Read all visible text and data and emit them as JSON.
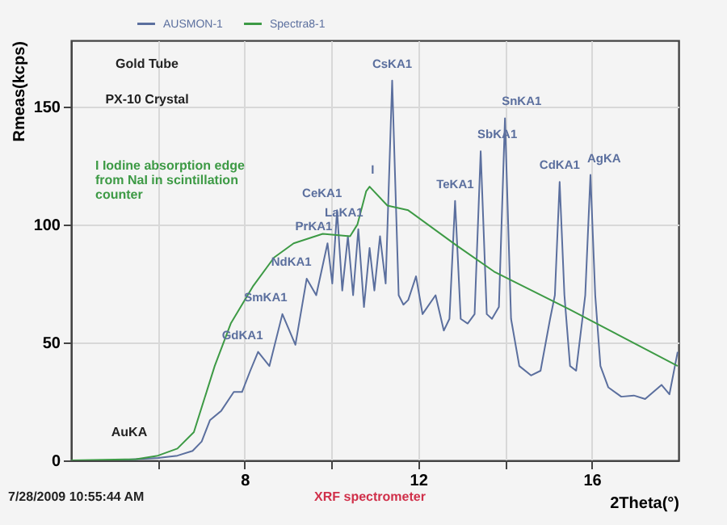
{
  "chart_data": {
    "type": "line",
    "xlabel": "2Theta(°)",
    "ylabel": "Rmeas(kcps)",
    "xlim": [
      4,
      18
    ],
    "ylim": [
      0,
      178
    ],
    "xticks": [
      {
        "value": 6,
        "label": null
      },
      8,
      {
        "value": 10,
        "label": null
      },
      12,
      {
        "value": 14,
        "label": null
      },
      16
    ],
    "yticks": [
      0,
      50,
      100,
      150
    ],
    "grid": true,
    "legend": "top left",
    "series": [
      {
        "name": "AUSMON-1",
        "color": "#5b6f9e",
        "x": [
          4,
          5,
          5.5,
          6,
          6.45,
          6.8,
          7.01,
          7.2,
          7.46,
          7.75,
          7.94,
          8.13,
          8.31,
          8.57,
          8.87,
          9.17,
          9.43,
          9.65,
          9.91,
          10.02,
          10.13,
          10.25,
          10.38,
          10.5,
          10.62,
          10.75,
          10.88,
          10.99,
          11.12,
          11.25,
          11.4,
          11.55,
          11.66,
          11.77,
          11.95,
          12.1,
          12.4,
          12.59,
          12.72,
          12.85,
          12.98,
          13.14,
          13.3,
          13.44,
          13.58,
          13.7,
          13.86,
          14.0,
          14.14,
          14.33,
          14.6,
          14.82,
          15.04,
          15.15,
          15.26,
          15.37,
          15.5,
          15.64,
          15.85,
          15.97,
          16.08,
          16.2,
          16.38,
          16.68,
          16.97,
          17.23,
          17.61,
          17.79,
          17.98
        ],
        "values": [
          0,
          0,
          0.5,
          1,
          2,
          4,
          8,
          17,
          21,
          29,
          29,
          38,
          46,
          40,
          62,
          49,
          77,
          70,
          92,
          75,
          106,
          72,
          95,
          70,
          98,
          65,
          90,
          72,
          95,
          75,
          161,
          70,
          66,
          68,
          78,
          62,
          70,
          55,
          60,
          110,
          60,
          58,
          62,
          131,
          62,
          60,
          65,
          145,
          60,
          40,
          36,
          38,
          60,
          70,
          118,
          70,
          40,
          38,
          70,
          121,
          70,
          40,
          31,
          27,
          27.5,
          26,
          32,
          28,
          46
        ]
      },
      {
        "name": "Spectra8-1",
        "color": "#3d9a45",
        "x": [
          4,
          5.5,
          6,
          6.45,
          6.83,
          7.31,
          7.68,
          8.2,
          8.68,
          9.13,
          9.8,
          10.43,
          10.6,
          10.8,
          10.88,
          11.29,
          11.77,
          12.89,
          13.75,
          15.49,
          17.98
        ],
        "values": [
          0,
          0.5,
          2,
          5,
          12,
          40,
          58,
          74,
          86,
          92,
          96,
          95,
          100,
          114,
          116,
          108,
          106,
          91,
          80,
          64,
          40
        ]
      }
    ],
    "annotations": [
      "Gold Tube",
      "PX-10 Crystal",
      "I   Iodine absorption edge from NaI in scintillation counter",
      "7/28/2009 10:55:44 AM",
      "XRF spectrometer",
      "AuKA",
      {
        "text": "GdKA1",
        "x": 8.31,
        "y": 46
      },
      {
        "text": "SmKA1",
        "x": 8.87,
        "y": 62
      },
      {
        "text": "NdKA1",
        "x": 9.43,
        "y": 77
      },
      {
        "text": "PrKA1",
        "x": 9.91,
        "y": 92
      },
      {
        "text": "CeKA1",
        "x": 10.13,
        "y": 106
      },
      {
        "text": "LaKA1",
        "x": 10.62,
        "y": 98
      },
      {
        "text": "I",
        "x": 10.88,
        "y": 116
      },
      {
        "text": "CsKA1",
        "x": 11.4,
        "y": 161
      },
      {
        "text": "TeKA1",
        "x": 12.85,
        "y": 110
      },
      {
        "text": "SbKA1",
        "x": 13.44,
        "y": 131
      },
      {
        "text": "SnKA1",
        "x": 14.0,
        "y": 145
      },
      {
        "text": "CdKA1",
        "x": 15.26,
        "y": 118
      },
      {
        "text": "AgKA",
        "x": 15.97,
        "y": 121
      }
    ]
  }
}
